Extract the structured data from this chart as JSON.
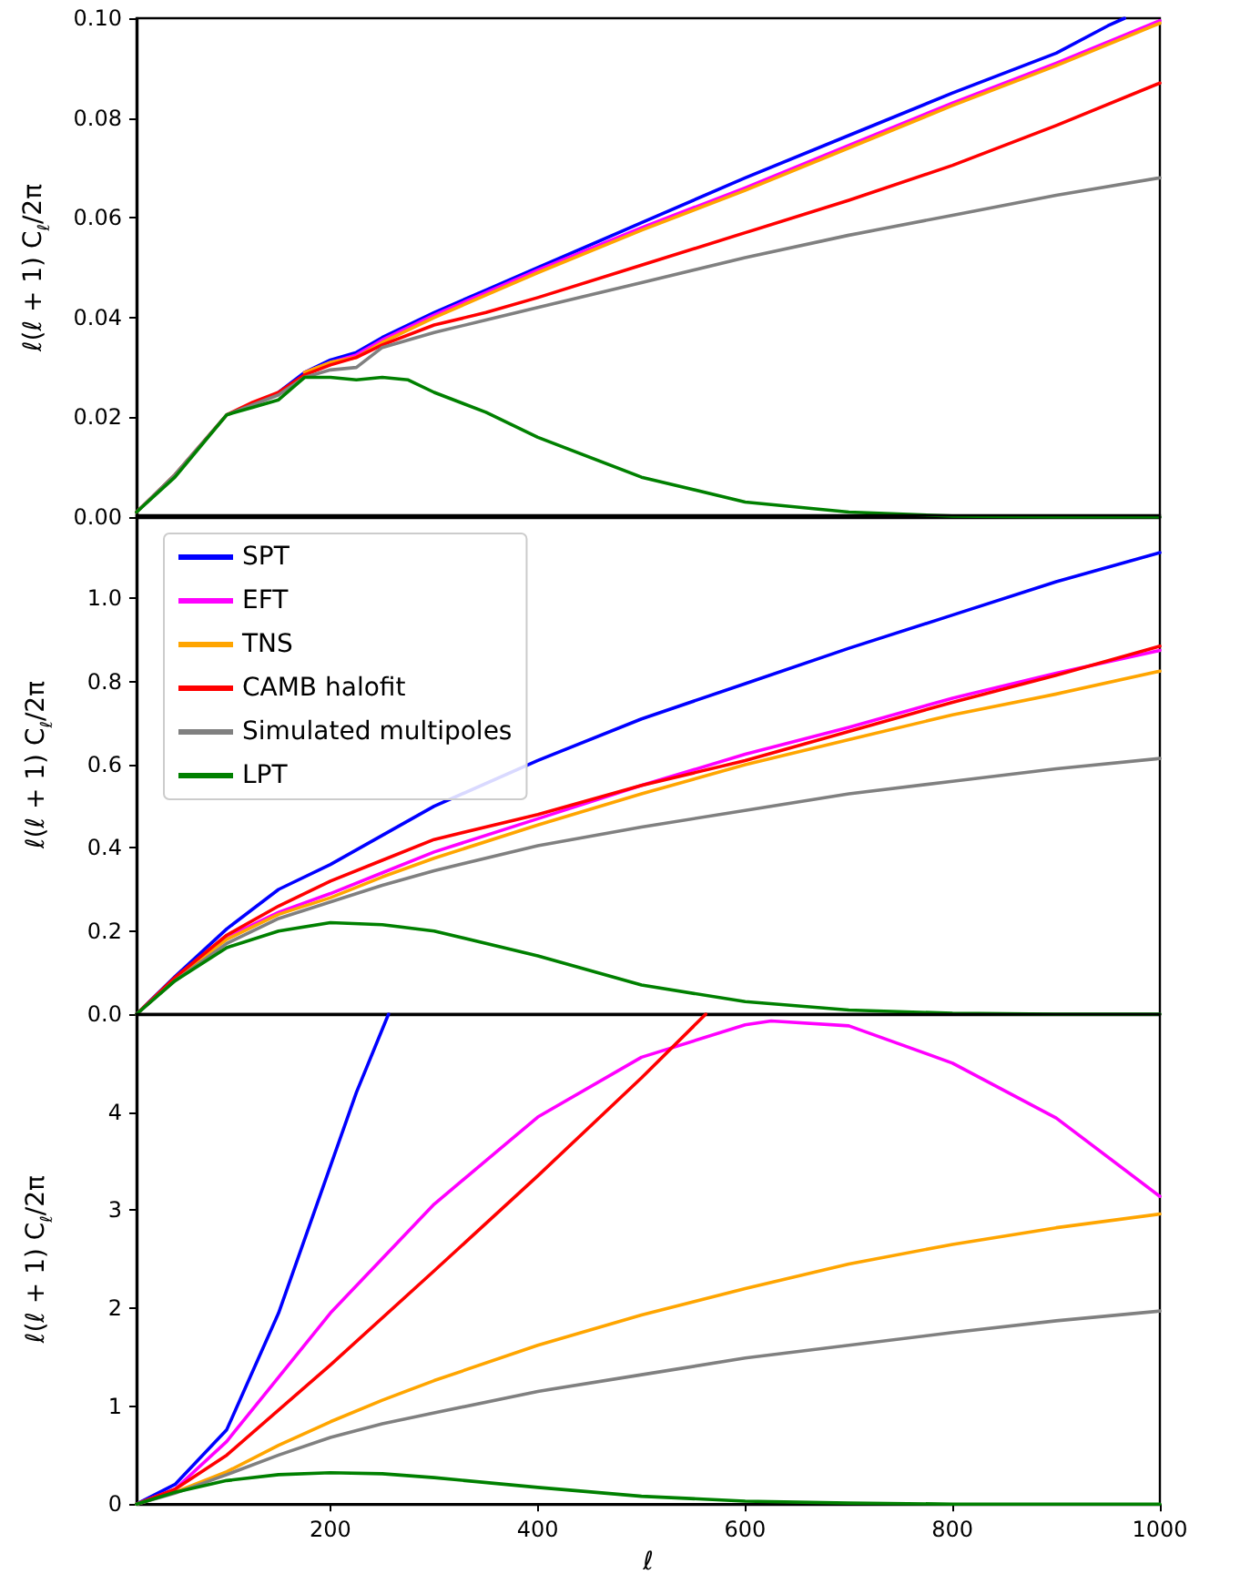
{
  "chart_data": [
    {
      "type": "line",
      "ylabel": "ℓ(ℓ + 1) C$_{ℓ}$/2π",
      "xlim": [
        13,
        1000
      ],
      "ylim": [
        0,
        0.1
      ],
      "yticks": [
        {
          "value": 0,
          "label": "0.00"
        },
        {
          "value": 0.02,
          "label": "0.02"
        },
        {
          "value": 0.04,
          "label": "0.04"
        },
        {
          "value": 0.06,
          "label": "0.06"
        },
        {
          "value": 0.08,
          "label": "0.08"
        },
        {
          "value": 0.1,
          "label": "0.10"
        }
      ],
      "tick_labels": "y",
      "x": [
        13,
        50,
        100,
        125,
        150,
        175,
        200,
        225,
        250,
        275,
        300,
        350,
        400,
        500,
        600,
        700,
        800,
        900,
        1000
      ],
      "series": [
        {
          "color": "#0000ff",
          "x": [
            150,
            175,
            200,
            225,
            250,
            300,
            350,
            400,
            500,
            600,
            700,
            800,
            900,
            950,
            966
          ],
          "values": [
            0.025,
            0.029,
            0.0315,
            0.033,
            0.036,
            0.041,
            0.0455,
            0.05,
            0.059,
            0.068,
            0.0765,
            0.085,
            0.093,
            0.0985,
            0.1
          ]
        },
        {
          "color": "#ff00ff",
          "x": [
            175,
            200,
            225,
            250,
            300,
            350,
            400,
            500,
            600,
            700,
            800,
            900,
            1000
          ],
          "values": [
            0.029,
            0.031,
            0.0325,
            0.0355,
            0.0405,
            0.045,
            0.0495,
            0.058,
            0.066,
            0.0745,
            0.083,
            0.091,
            0.0995
          ]
        },
        {
          "color": "#ffa500",
          "x": [
            175,
            200,
            225,
            250,
            300,
            350,
            400,
            500,
            600,
            700,
            800,
            900,
            1000
          ],
          "values": [
            0.029,
            0.031,
            0.032,
            0.035,
            0.04,
            0.0445,
            0.049,
            0.0575,
            0.0655,
            0.074,
            0.0825,
            0.0905,
            0.099
          ]
        },
        {
          "color": "#ff0000",
          "x": [
            13,
            50,
            100,
            125,
            150,
            175,
            200,
            225,
            250,
            300,
            350,
            400,
            500,
            600,
            700,
            800,
            900,
            1000
          ],
          "values": [
            0.001,
            0.0085,
            0.0205,
            0.023,
            0.025,
            0.0285,
            0.0305,
            0.032,
            0.0345,
            0.0385,
            0.041,
            0.044,
            0.0505,
            0.057,
            0.0635,
            0.0705,
            0.0785,
            0.087
          ]
        },
        {
          "color": "#808080",
          "x": [
            13,
            50,
            100,
            125,
            150,
            175,
            200,
            225,
            250,
            300,
            350,
            400,
            500,
            600,
            700,
            800,
            900,
            1000
          ],
          "values": [
            0.001,
            0.0085,
            0.0205,
            0.0225,
            0.0245,
            0.028,
            0.0295,
            0.03,
            0.034,
            0.037,
            0.0395,
            0.042,
            0.047,
            0.052,
            0.0565,
            0.0605,
            0.0645,
            0.068
          ]
        },
        {
          "color": "#008000",
          "values": [
            0.001,
            0.008,
            0.0205,
            0.022,
            0.0235,
            0.028,
            0.028,
            0.0275,
            0.028,
            0.0275,
            0.025,
            0.021,
            0.016,
            0.008,
            0.003,
            0.001,
            0.0002,
            0,
            0
          ]
        }
      ]
    },
    {
      "type": "line",
      "ylabel": "ℓ(ℓ + 1) C$_{ℓ}$/2π",
      "xlim": [
        13,
        1000
      ],
      "ylim": [
        0,
        1.2
      ],
      "yticks": [
        {
          "value": 0,
          "label": "0.0"
        },
        {
          "value": 0.2,
          "label": "0.2"
        },
        {
          "value": 0.4,
          "label": "0.4"
        },
        {
          "value": 0.6,
          "label": "0.6"
        },
        {
          "value": 0.8,
          "label": "0.8"
        },
        {
          "value": 1,
          "label": "1.0"
        }
      ],
      "tick_labels": "y",
      "legend": "top left",
      "x": [
        13,
        50,
        100,
        150,
        200,
        250,
        300,
        400,
        500,
        600,
        700,
        800,
        900,
        1000
      ],
      "series": [
        {
          "name": "SPT",
          "color": "#0000ff",
          "values": [
            0,
            0.09,
            0.205,
            0.3,
            0.36,
            0.43,
            0.5,
            0.61,
            0.71,
            0.795,
            0.88,
            0.96,
            1.04,
            1.11
          ]
        },
        {
          "name": "EFT",
          "color": "#ff00ff",
          "values": [
            0,
            0.085,
            0.185,
            0.245,
            0.29,
            0.34,
            0.39,
            0.47,
            0.55,
            0.625,
            0.69,
            0.76,
            0.82,
            0.875
          ]
        },
        {
          "name": "TNS",
          "color": "#ffa500",
          "values": [
            0,
            0.085,
            0.18,
            0.24,
            0.28,
            0.33,
            0.375,
            0.455,
            0.53,
            0.6,
            0.66,
            0.72,
            0.77,
            0.825
          ]
        },
        {
          "name": "CAMB halofit",
          "color": "#ff0000",
          "values": [
            0,
            0.088,
            0.19,
            0.26,
            0.32,
            0.37,
            0.42,
            0.48,
            0.55,
            0.61,
            0.68,
            0.75,
            0.815,
            0.885
          ]
        },
        {
          "name": "Simulated multipoles",
          "color": "#808080",
          "values": [
            0,
            0.08,
            0.17,
            0.23,
            0.27,
            0.31,
            0.345,
            0.405,
            0.45,
            0.49,
            0.53,
            0.56,
            0.59,
            0.615
          ]
        },
        {
          "name": "LPT",
          "color": "#008000",
          "values": [
            0,
            0.08,
            0.16,
            0.2,
            0.22,
            0.215,
            0.2,
            0.14,
            0.07,
            0.03,
            0.01,
            0.002,
            0,
            0
          ]
        }
      ]
    },
    {
      "type": "line",
      "ylabel": "ℓ(ℓ + 1) C$_{ℓ}$/2π",
      "xlabel": "ℓ",
      "xlim": [
        13,
        1000
      ],
      "xticks": [
        200,
        400,
        600,
        800,
        1000
      ],
      "ylim": [
        0,
        5
      ],
      "yticks": [
        0,
        1,
        2,
        3,
        4
      ],
      "x": [
        13,
        50,
        100,
        150,
        200,
        250,
        300,
        400,
        500,
        600,
        700,
        800,
        900,
        1000
      ],
      "series": [
        {
          "color": "#0000ff",
          "x": [
            13,
            50,
            100,
            150,
            200,
            225,
            256
          ],
          "values": [
            0,
            0.2,
            0.76,
            1.95,
            3.45,
            4.2,
            5
          ]
        },
        {
          "color": "#ff00ff",
          "x": [
            13,
            50,
            100,
            200,
            300,
            400,
            500,
            600,
            625,
            700,
            800,
            900,
            1000
          ],
          "values": [
            0,
            0.15,
            0.64,
            1.95,
            3.06,
            3.95,
            4.56,
            4.89,
            4.93,
            4.88,
            4.5,
            3.94,
            3.14
          ]
        },
        {
          "color": "#ffa500",
          "values": [
            0,
            0.12,
            0.33,
            0.6,
            0.84,
            1.06,
            1.26,
            1.62,
            1.93,
            2.2,
            2.45,
            2.65,
            2.82,
            2.96
          ]
        },
        {
          "color": "#ff0000",
          "x": [
            13,
            50,
            100,
            200,
            300,
            400,
            500,
            562
          ],
          "values": [
            0,
            0.15,
            0.5,
            1.42,
            2.38,
            3.35,
            4.35,
            5
          ]
        },
        {
          "color": "#808080",
          "values": [
            0,
            0.11,
            0.3,
            0.5,
            0.68,
            0.82,
            0.93,
            1.15,
            1.32,
            1.49,
            1.62,
            1.75,
            1.87,
            1.97
          ]
        },
        {
          "color": "#008000",
          "values": [
            0,
            0.12,
            0.24,
            0.3,
            0.32,
            0.31,
            0.27,
            0.17,
            0.08,
            0.03,
            0.01,
            0,
            0,
            0
          ]
        }
      ]
    }
  ]
}
